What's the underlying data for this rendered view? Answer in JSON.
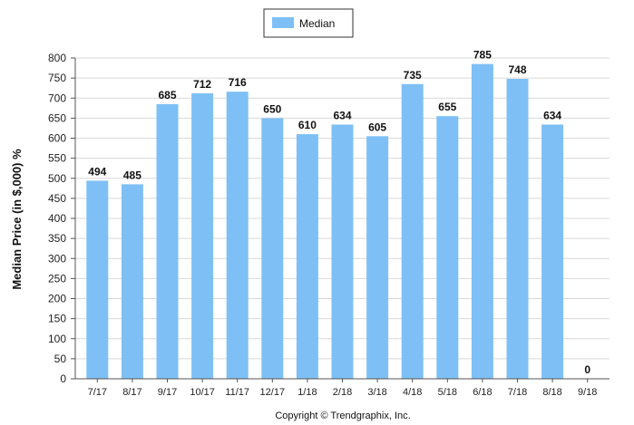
{
  "chart_data": {
    "type": "bar",
    "categories": [
      "7/17",
      "8/17",
      "9/17",
      "10/17",
      "11/17",
      "12/17",
      "1/18",
      "2/18",
      "3/18",
      "4/18",
      "5/18",
      "6/18",
      "7/18",
      "8/18",
      "9/18"
    ],
    "series": [
      {
        "name": "Median",
        "values": [
          494,
          485,
          685,
          712,
          716,
          650,
          610,
          634,
          605,
          735,
          655,
          785,
          748,
          634,
          0
        ]
      }
    ],
    "data_labels": [
      "494",
      "485",
      "685",
      "712",
      "716",
      "650",
      "610",
      "634",
      "605",
      "735",
      "655",
      "785",
      "748",
      "634",
      "0"
    ],
    "ylabel": "Median Price (in $,000) %",
    "xlabel": "",
    "ylim": [
      0,
      800
    ],
    "yticks": [
      0,
      50,
      100,
      150,
      200,
      250,
      300,
      350,
      400,
      450,
      500,
      550,
      600,
      650,
      700,
      750,
      800
    ],
    "grid": true,
    "legend_position": "top-center",
    "colors": {
      "bar": "#7ec0f5",
      "grid": "#d9d9d9",
      "axis": "#555555"
    }
  },
  "footer": {
    "copyright": "Copyright © Trendgraphix, Inc."
  }
}
